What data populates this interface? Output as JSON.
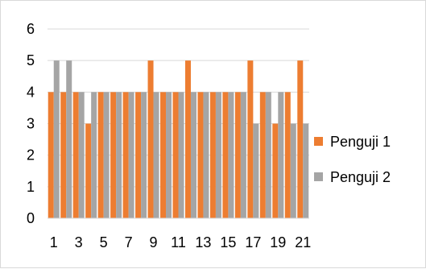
{
  "chart_data": {
    "type": "bar",
    "categories": [
      "1",
      "2",
      "3",
      "4",
      "5",
      "6",
      "7",
      "8",
      "9",
      "10",
      "11",
      "12",
      "13",
      "14",
      "15",
      "16",
      "17",
      "18",
      "19",
      "20",
      "21"
    ],
    "x_tick_labels": [
      "1",
      "3",
      "5",
      "7",
      "9",
      "11",
      "13",
      "15",
      "17",
      "19",
      "21"
    ],
    "series": [
      {
        "name": "Penguji 1",
        "color": "#ed7d31",
        "values": [
          4,
          4,
          4,
          3,
          4,
          4,
          4,
          4,
          5,
          4,
          4,
          5,
          4,
          4,
          4,
          4,
          5,
          4,
          3,
          4,
          5
        ]
      },
      {
        "name": "Penguji 2",
        "color": "#a5a5a5",
        "values": [
          5,
          5,
          4,
          4,
          4,
          4,
          4,
          4,
          4,
          4,
          4,
          4,
          4,
          4,
          4,
          4,
          3,
          4,
          4,
          3,
          3
        ]
      }
    ],
    "ylim": [
      0,
      6
    ],
    "y_ticks": [
      "0",
      "1",
      "2",
      "3",
      "4",
      "5",
      "6"
    ],
    "grid": "horizontal",
    "legend_position": "right",
    "title": "",
    "xlabel": "",
    "ylabel": ""
  }
}
